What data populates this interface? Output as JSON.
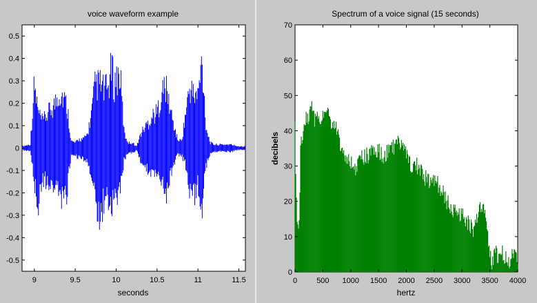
{
  "chart_data": [
    {
      "type": "line",
      "title": "voice waveform example",
      "xlabel": "seconds",
      "ylabel": "",
      "xlim": [
        8.85,
        11.58
      ],
      "ylim": [
        -0.55,
        0.55
      ],
      "xticks": [
        "9",
        "9.5",
        "10",
        "10.5",
        "11",
        "11.5"
      ],
      "yticks": [
        "0.5",
        "0.4",
        "0.3",
        "0.2",
        "0.1",
        "0",
        "-0.1",
        "-0.2",
        "-0.3",
        "-0.4",
        "-0.5"
      ],
      "grid": false,
      "color": "#0000ff",
      "series": [
        {
          "x": [
            8.85,
            8.95,
            9.0,
            9.05,
            9.1,
            9.2,
            9.25,
            9.3,
            9.35,
            9.4,
            9.42,
            9.45,
            9.5,
            9.55,
            9.6,
            9.65,
            9.7,
            9.75,
            9.78,
            9.8,
            9.85,
            9.9,
            9.95,
            9.97,
            10.0,
            10.05,
            10.1,
            10.15,
            10.2,
            10.25,
            10.3,
            10.35,
            10.4,
            10.45,
            10.5,
            10.55,
            10.6,
            10.65,
            10.7,
            10.75,
            10.8,
            10.85,
            10.9,
            10.95,
            11.0,
            11.05,
            11.1,
            11.15,
            11.2,
            11.3,
            11.4,
            11.5,
            11.58
          ],
          "upper": [
            0.01,
            0.02,
            0.36,
            0.2,
            0.15,
            0.22,
            0.25,
            0.32,
            0.3,
            0.24,
            0.17,
            0.04,
            0.03,
            0.05,
            0.05,
            0.08,
            0.2,
            0.38,
            0.36,
            0.37,
            0.33,
            0.34,
            0.47,
            0.36,
            0.4,
            0.42,
            0.08,
            0.03,
            0.03,
            0.01,
            0.08,
            0.12,
            0.15,
            0.19,
            0.2,
            0.3,
            0.36,
            0.25,
            0.14,
            0.05,
            0.04,
            0.2,
            0.35,
            0.3,
            0.3,
            0.5,
            0.12,
            0.03,
            0.02,
            0.02,
            0.02,
            0.01,
            0.01
          ],
          "lower": [
            -0.01,
            -0.02,
            -0.2,
            -0.32,
            -0.18,
            -0.2,
            -0.22,
            -0.24,
            -0.3,
            -0.25,
            -0.15,
            -0.04,
            -0.04,
            -0.06,
            -0.06,
            -0.09,
            -0.15,
            -0.3,
            -0.44,
            -0.4,
            -0.3,
            -0.28,
            -0.32,
            -0.3,
            -0.28,
            -0.22,
            -0.06,
            -0.03,
            -0.03,
            -0.01,
            -0.08,
            -0.1,
            -0.14,
            -0.16,
            -0.15,
            -0.2,
            -0.28,
            -0.18,
            -0.1,
            -0.04,
            -0.04,
            -0.1,
            -0.25,
            -0.28,
            -0.2,
            -0.33,
            -0.1,
            -0.03,
            -0.02,
            -0.02,
            -0.02,
            -0.01,
            -0.01
          ]
        }
      ]
    },
    {
      "type": "area",
      "title": "Spectrum of a voice signal (15 seconds)",
      "xlabel": "hertz",
      "ylabel": "decibels",
      "xlim": [
        0,
        4000
      ],
      "ylim": [
        0,
        70
      ],
      "xticks": [
        "0",
        "500",
        "1000",
        "1500",
        "2000",
        "2500",
        "3000",
        "3500",
        "4000"
      ],
      "yticks": [
        "70",
        "60",
        "50",
        "40",
        "30",
        "20",
        "10",
        "0"
      ],
      "grid": false,
      "color": "#008000",
      "series": [
        {
          "x": [
            0,
            20,
            50,
            80,
            100,
            150,
            200,
            250,
            300,
            350,
            400,
            450,
            500,
            550,
            600,
            650,
            700,
            750,
            800,
            850,
            900,
            950,
            1000,
            1100,
            1200,
            1300,
            1400,
            1500,
            1600,
            1700,
            1800,
            1900,
            2000,
            2100,
            2200,
            2300,
            2400,
            2500,
            2600,
            2700,
            2800,
            2900,
            3000,
            3100,
            3200,
            3300,
            3350,
            3400,
            3450,
            3500,
            3550,
            3600,
            3650,
            3700,
            3750,
            3800,
            3850,
            3900,
            3950,
            4000
          ],
          "y": [
            45,
            20,
            12,
            18,
            35,
            40,
            43,
            44,
            48,
            42,
            44,
            43,
            45,
            46,
            47,
            43,
            42,
            40,
            36,
            35,
            32,
            31,
            31,
            29,
            32,
            33,
            34,
            34,
            33,
            34,
            36,
            37,
            33,
            30,
            30,
            27,
            26,
            26,
            24,
            21,
            18,
            17,
            16,
            14,
            12,
            17,
            20,
            18,
            12,
            4,
            2,
            6,
            3,
            7,
            4,
            5,
            3,
            4,
            6,
            4
          ]
        }
      ]
    }
  ]
}
